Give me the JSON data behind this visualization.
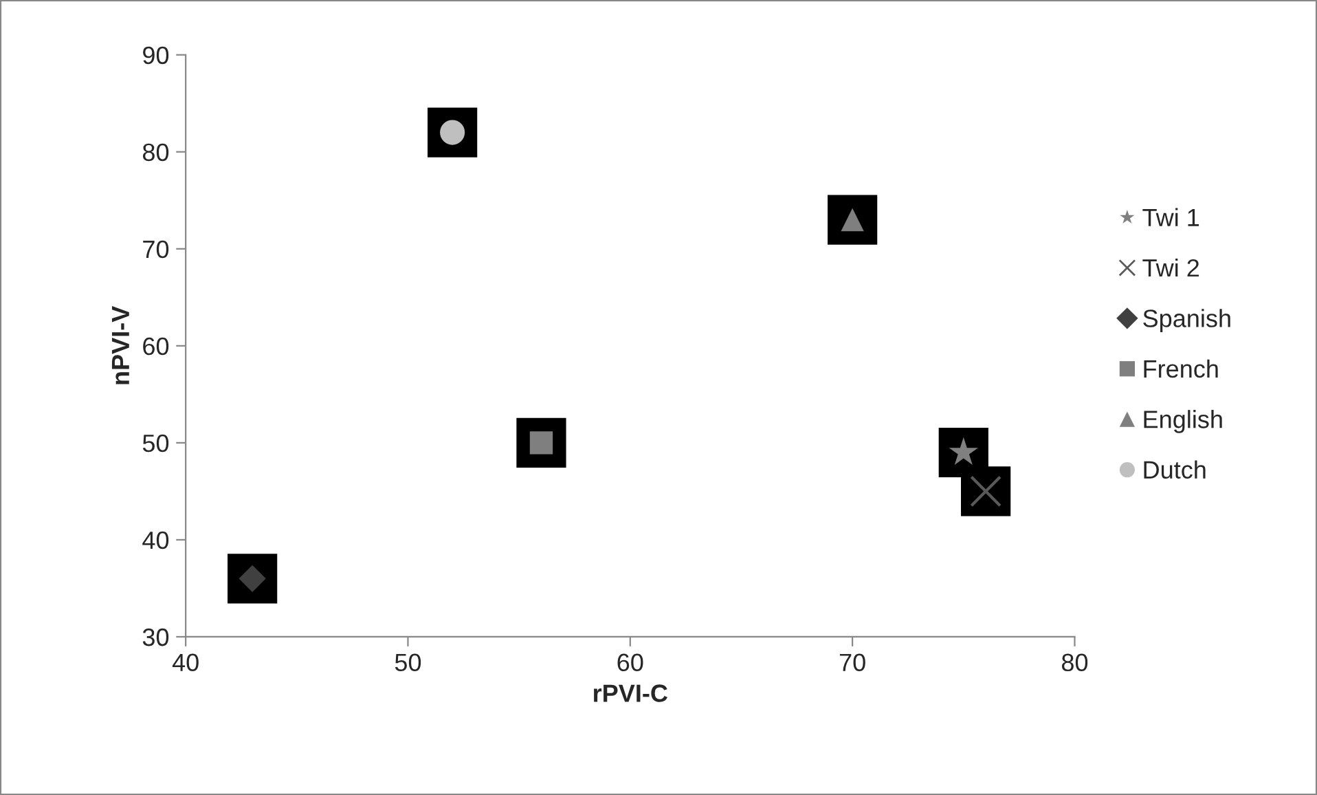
{
  "chart_data": {
    "type": "scatter",
    "xlabel": "rPVI-C",
    "ylabel": "nPVI-V",
    "xlim": [
      40,
      80
    ],
    "xticks": [
      40,
      50,
      60,
      70,
      80
    ],
    "ylim": [
      30,
      90
    ],
    "yticks": [
      30,
      40,
      50,
      60,
      70,
      80,
      90
    ],
    "grid": false,
    "legend": "right",
    "series": [
      {
        "name": "Twi 1",
        "color": "#808080",
        "marker": "star",
        "x": [
          75
        ],
        "values": [
          49
        ]
      },
      {
        "name": "Twi 2",
        "color": "#595959",
        "marker": "cross",
        "x": [
          76
        ],
        "values": [
          45
        ]
      },
      {
        "name": "Spanish",
        "color": "#404040",
        "marker": "diamond",
        "x": [
          43
        ],
        "values": [
          36
        ]
      },
      {
        "name": "French",
        "color": "#7f7f7f",
        "marker": "square",
        "x": [
          56
        ],
        "values": [
          50
        ]
      },
      {
        "name": "English",
        "color": "#7f7f7f",
        "marker": "triangle",
        "x": [
          70
        ],
        "values": [
          73
        ]
      },
      {
        "name": "Dutch",
        "color": "#bfbfbf",
        "marker": "circle",
        "x": [
          52
        ],
        "values": [
          82
        ]
      }
    ]
  }
}
